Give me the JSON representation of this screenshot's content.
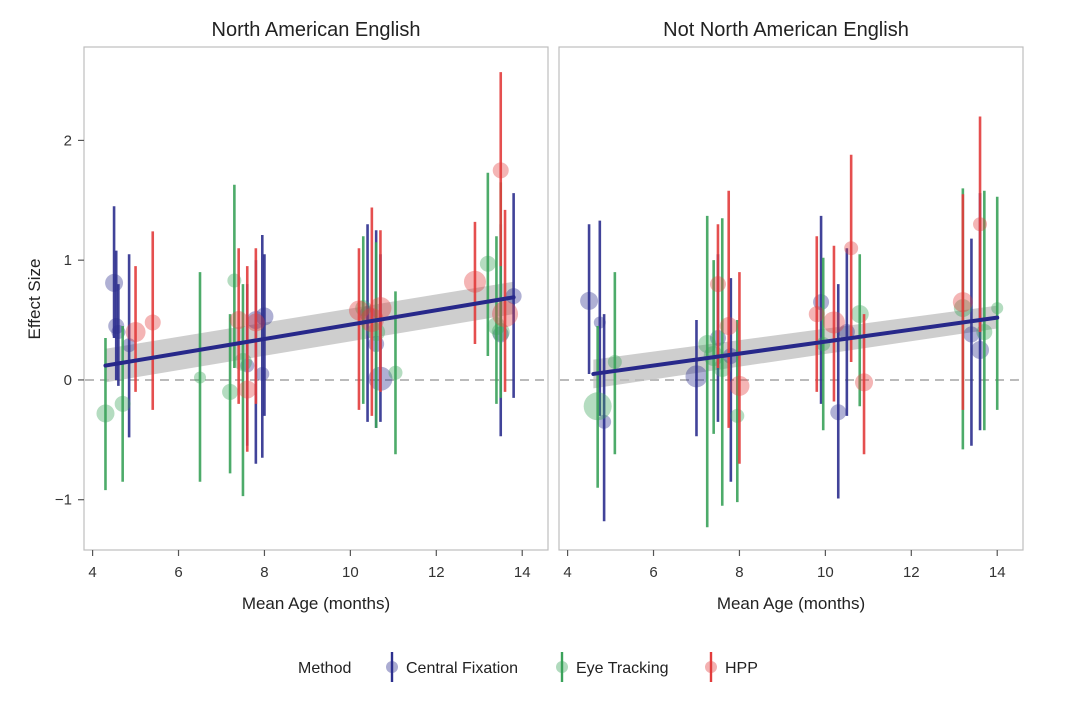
{
  "chart_data": {
    "type": "scatter",
    "panels": [
      {
        "title": "North American English",
        "fit_line": {
          "x": [
            4.3,
            13.8
          ],
          "y": [
            0.12,
            0.69
          ],
          "ci_low": [
            -0.02,
            0.55
          ],
          "ci_high": [
            0.26,
            0.82
          ]
        },
        "points": [
          {
            "method": "Central Fixation",
            "x": 4.5,
            "y": 0.81,
            "lo": 0.35,
            "hi": 1.45,
            "r": 9
          },
          {
            "method": "Central Fixation",
            "x": 4.55,
            "y": 0.45,
            "lo": 0.0,
            "hi": 1.08,
            "r": 8
          },
          {
            "method": "Central Fixation",
            "x": 4.6,
            "y": 0.4,
            "lo": -0.05,
            "hi": 0.8,
            "r": 7
          },
          {
            "method": "Central Fixation",
            "x": 4.85,
            "y": 0.29,
            "lo": -0.48,
            "hi": 1.05,
            "r": 7
          },
          {
            "method": "Central Fixation",
            "x": 7.6,
            "y": 0.12,
            "lo": -0.55,
            "hi": 0.8,
            "r": 7
          },
          {
            "method": "Central Fixation",
            "x": 7.8,
            "y": 0.5,
            "lo": -0.7,
            "hi": 1.0,
            "r": 9
          },
          {
            "method": "Central Fixation",
            "x": 7.95,
            "y": 0.05,
            "lo": -0.65,
            "hi": 1.21,
            "r": 7
          },
          {
            "method": "Central Fixation",
            "x": 8.0,
            "y": 0.53,
            "lo": -0.3,
            "hi": 1.05,
            "r": 9
          },
          {
            "method": "Central Fixation",
            "x": 10.4,
            "y": 0.55,
            "lo": -0.35,
            "hi": 1.3,
            "r": 8
          },
          {
            "method": "Central Fixation",
            "x": 10.6,
            "y": 0.3,
            "lo": -0.4,
            "hi": 1.25,
            "r": 8
          },
          {
            "method": "Central Fixation",
            "x": 10.7,
            "y": 0.01,
            "lo": -0.35,
            "hi": 1.05,
            "r": 12
          },
          {
            "method": "Central Fixation",
            "x": 13.5,
            "y": 0.38,
            "lo": -0.47,
            "hi": 1.3,
            "r": 8
          },
          {
            "method": "Central Fixation",
            "x": 13.8,
            "y": 0.7,
            "lo": -0.15,
            "hi": 1.56,
            "r": 8
          },
          {
            "method": "Eye Tracking",
            "x": 4.3,
            "y": -0.28,
            "lo": -0.92,
            "hi": 0.35,
            "r": 9
          },
          {
            "method": "Eye Tracking",
            "x": 4.7,
            "y": -0.2,
            "lo": -0.85,
            "hi": 0.45,
            "r": 8
          },
          {
            "method": "Eye Tracking",
            "x": 6.5,
            "y": 0.02,
            "lo": -0.85,
            "hi": 0.9,
            "r": 6
          },
          {
            "method": "Eye Tracking",
            "x": 7.2,
            "y": -0.1,
            "lo": -0.78,
            "hi": 0.55,
            "r": 8
          },
          {
            "method": "Eye Tracking",
            "x": 7.3,
            "y": 0.83,
            "lo": 0.1,
            "hi": 1.63,
            "r": 7
          },
          {
            "method": "Eye Tracking",
            "x": 7.5,
            "y": 0.15,
            "lo": -0.97,
            "hi": 0.8,
            "r": 9
          },
          {
            "method": "Eye Tracking",
            "x": 10.3,
            "y": 0.6,
            "lo": -0.2,
            "hi": 1.2,
            "r": 8
          },
          {
            "method": "Eye Tracking",
            "x": 10.6,
            "y": 0.4,
            "lo": -0.4,
            "hi": 1.15,
            "r": 9
          },
          {
            "method": "Eye Tracking",
            "x": 11.05,
            "y": 0.06,
            "lo": -0.62,
            "hi": 0.74,
            "r": 7
          },
          {
            "method": "Eye Tracking",
            "x": 13.2,
            "y": 0.97,
            "lo": 0.2,
            "hi": 1.73,
            "r": 8
          },
          {
            "method": "Eye Tracking",
            "x": 13.4,
            "y": 0.45,
            "lo": -0.2,
            "hi": 1.2,
            "r": 9
          },
          {
            "method": "Eye Tracking",
            "x": 13.5,
            "y": 0.4,
            "lo": -0.15,
            "hi": 1.65,
            "r": 9
          },
          {
            "method": "HPP",
            "x": 5.0,
            "y": 0.4,
            "lo": -0.1,
            "hi": 0.95,
            "r": 10
          },
          {
            "method": "HPP",
            "x": 5.4,
            "y": 0.48,
            "lo": -0.25,
            "hi": 1.24,
            "r": 8
          },
          {
            "method": "HPP",
            "x": 7.4,
            "y": 0.5,
            "lo": -0.2,
            "hi": 1.1,
            "r": 9
          },
          {
            "method": "HPP",
            "x": 7.6,
            "y": -0.08,
            "lo": -0.6,
            "hi": 0.95,
            "r": 9
          },
          {
            "method": "HPP",
            "x": 7.8,
            "y": 0.48,
            "lo": -0.2,
            "hi": 1.1,
            "r": 9
          },
          {
            "method": "HPP",
            "x": 10.2,
            "y": 0.58,
            "lo": -0.25,
            "hi": 1.1,
            "r": 10
          },
          {
            "method": "HPP",
            "x": 10.5,
            "y": 0.5,
            "lo": -0.3,
            "hi": 1.44,
            "r": 12
          },
          {
            "method": "HPP",
            "x": 10.7,
            "y": 0.6,
            "lo": -0.1,
            "hi": 1.25,
            "r": 11
          },
          {
            "method": "HPP",
            "x": 12.9,
            "y": 0.82,
            "lo": 0.3,
            "hi": 1.32,
            "r": 11
          },
          {
            "method": "HPP",
            "x": 13.5,
            "y": 1.75,
            "lo": 0.95,
            "hi": 2.57,
            "r": 8
          },
          {
            "method": "HPP",
            "x": 13.6,
            "y": 0.55,
            "lo": -0.1,
            "hi": 1.42,
            "r": 13
          }
        ]
      },
      {
        "title": "Not North American English",
        "fit_line": {
          "x": [
            4.6,
            14.0
          ],
          "y": [
            0.05,
            0.52
          ],
          "ci_low": [
            -0.07,
            0.43
          ],
          "ci_high": [
            0.17,
            0.62
          ]
        },
        "points": [
          {
            "method": "Central Fixation",
            "x": 4.5,
            "y": 0.66,
            "lo": 0.05,
            "hi": 1.3,
            "r": 9
          },
          {
            "method": "Central Fixation",
            "x": 4.75,
            "y": 0.48,
            "lo": -0.3,
            "hi": 1.33,
            "r": 6
          },
          {
            "method": "Central Fixation",
            "x": 4.85,
            "y": -0.35,
            "lo": -1.18,
            "hi": 0.55,
            "r": 7
          },
          {
            "method": "Central Fixation",
            "x": 7.0,
            "y": 0.03,
            "lo": -0.47,
            "hi": 0.5,
            "r": 11
          },
          {
            "method": "Central Fixation",
            "x": 7.5,
            "y": 0.35,
            "lo": -0.35,
            "hi": 1.05,
            "r": 8
          },
          {
            "method": "Central Fixation",
            "x": 7.8,
            "y": 0.2,
            "lo": -0.85,
            "hi": 0.85,
            "r": 8
          },
          {
            "method": "Central Fixation",
            "x": 9.9,
            "y": 0.65,
            "lo": -0.2,
            "hi": 1.37,
            "r": 8
          },
          {
            "method": "Central Fixation",
            "x": 10.3,
            "y": -0.27,
            "lo": -0.99,
            "hi": 0.8,
            "r": 8
          },
          {
            "method": "Central Fixation",
            "x": 10.5,
            "y": 0.4,
            "lo": -0.3,
            "hi": 1.1,
            "r": 8
          },
          {
            "method": "Central Fixation",
            "x": 13.4,
            "y": 0.38,
            "lo": -0.55,
            "hi": 1.18,
            "r": 8
          },
          {
            "method": "Central Fixation",
            "x": 13.6,
            "y": 0.25,
            "lo": -0.42,
            "hi": 1.56,
            "r": 9
          },
          {
            "method": "Eye Tracking",
            "x": 4.7,
            "y": -0.22,
            "lo": -0.9,
            "hi": 0.45,
            "r": 14
          },
          {
            "method": "Eye Tracking",
            "x": 5.1,
            "y": 0.15,
            "lo": -0.62,
            "hi": 0.9,
            "r": 7
          },
          {
            "method": "Eye Tracking",
            "x": 7.25,
            "y": 0.3,
            "lo": -1.23,
            "hi": 1.37,
            "r": 9
          },
          {
            "method": "Eye Tracking",
            "x": 7.4,
            "y": 0.2,
            "lo": -0.45,
            "hi": 1.0,
            "r": 10
          },
          {
            "method": "Eye Tracking",
            "x": 7.6,
            "y": 0.1,
            "lo": -1.05,
            "hi": 1.35,
            "r": 9
          },
          {
            "method": "Eye Tracking",
            "x": 7.95,
            "y": -0.3,
            "lo": -1.02,
            "hi": 0.5,
            "r": 7
          },
          {
            "method": "Eye Tracking",
            "x": 9.95,
            "y": 0.3,
            "lo": -0.42,
            "hi": 1.02,
            "r": 7
          },
          {
            "method": "Eye Tracking",
            "x": 10.8,
            "y": 0.55,
            "lo": -0.22,
            "hi": 1.05,
            "r": 9
          },
          {
            "method": "Eye Tracking",
            "x": 13.2,
            "y": 0.6,
            "lo": -0.58,
            "hi": 1.6,
            "r": 9
          },
          {
            "method": "Eye Tracking",
            "x": 13.7,
            "y": 0.4,
            "lo": -0.42,
            "hi": 1.58,
            "r": 8
          },
          {
            "method": "Eye Tracking",
            "x": 14.0,
            "y": 0.6,
            "lo": -0.25,
            "hi": 1.53,
            "r": 6
          },
          {
            "method": "HPP",
            "x": 7.5,
            "y": 0.8,
            "lo": 0.1,
            "hi": 1.3,
            "r": 8
          },
          {
            "method": "HPP",
            "x": 7.75,
            "y": 0.45,
            "lo": -0.4,
            "hi": 1.58,
            "r": 9
          },
          {
            "method": "HPP",
            "x": 8.0,
            "y": -0.05,
            "lo": -0.7,
            "hi": 0.9,
            "r": 10
          },
          {
            "method": "HPP",
            "x": 9.8,
            "y": 0.55,
            "lo": -0.1,
            "hi": 1.2,
            "r": 8
          },
          {
            "method": "HPP",
            "x": 10.2,
            "y": 0.48,
            "lo": -0.18,
            "hi": 1.12,
            "r": 11
          },
          {
            "method": "HPP",
            "x": 10.6,
            "y": 1.1,
            "lo": 0.15,
            "hi": 1.88,
            "r": 7
          },
          {
            "method": "HPP",
            "x": 10.9,
            "y": -0.02,
            "lo": -0.62,
            "hi": 0.55,
            "r": 9
          },
          {
            "method": "HPP",
            "x": 13.2,
            "y": 0.65,
            "lo": -0.25,
            "hi": 1.55,
            "r": 10
          },
          {
            "method": "HPP",
            "x": 13.6,
            "y": 1.3,
            "lo": 0.4,
            "hi": 2.2,
            "r": 7
          }
        ]
      }
    ],
    "xlabel": "Mean Age (months)",
    "ylabel": "Effect Size",
    "xlim": [
      3.8,
      14.6
    ],
    "ylim": [
      -1.42,
      2.78
    ],
    "xticks": [
      4,
      6,
      8,
      10,
      12,
      14
    ],
    "yticks": [
      -1,
      0,
      1,
      2
    ],
    "ytick_labels": [
      "−1",
      "0",
      "1",
      "2"
    ],
    "reference_line_y": 0,
    "grid": false,
    "legend": {
      "position": "bottom",
      "title": "Method",
      "entries": [
        {
          "label": "Central Fixation",
          "color": "#2c2f8e"
        },
        {
          "label": "Eye Tracking",
          "color": "#3aa25a"
        },
        {
          "label": "HPP",
          "color": "#e23c3c"
        }
      ]
    },
    "colors": {
      "Central Fixation": "#2c2f8e",
      "Eye Tracking": "#3aa25a",
      "HPP": "#e23c3c",
      "fit_line": "#27288a",
      "ci_band": "#bdbdbd",
      "reference_line": "#bbbbbb"
    }
  }
}
